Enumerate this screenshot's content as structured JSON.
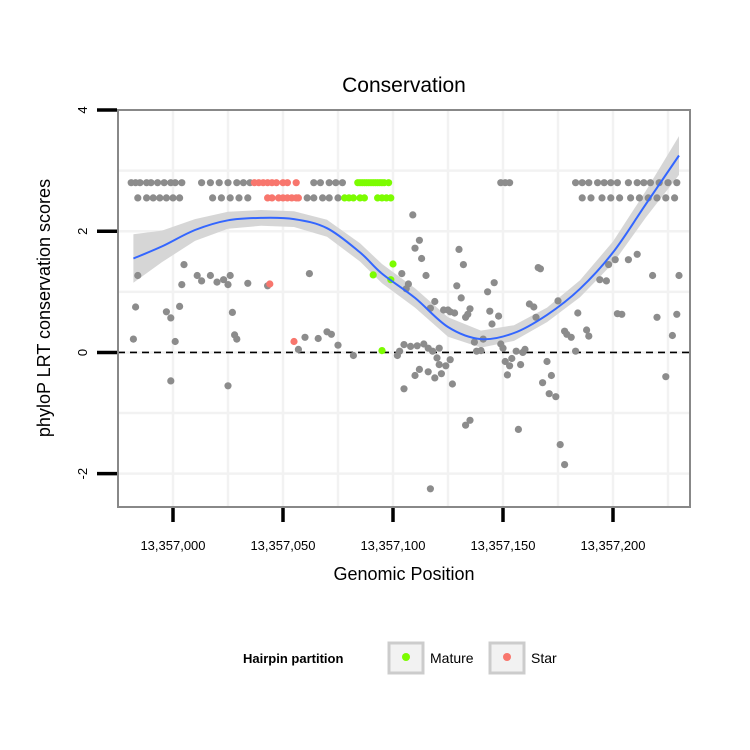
{
  "chart_data": {
    "type": "scatter",
    "title": "Conservation",
    "xlabel": "Genomic Position",
    "ylabel": "phyloP LRT conservation scores",
    "xlim": [
      13356975,
      13357235
    ],
    "ylim": [
      -2.55,
      4
    ],
    "x_ticks": [
      {
        "value": 13357000,
        "label": "13,357,000"
      },
      {
        "value": 13357050,
        "label": "13,357,050"
      },
      {
        "value": 13357100,
        "label": "13,357,100"
      },
      {
        "value": 13357150,
        "label": "13,357,150"
      },
      {
        "value": 13357200,
        "label": "13,357,200"
      }
    ],
    "y_ticks": [
      {
        "value": -2,
        "label": "-2"
      },
      {
        "value": 0,
        "label": "0"
      },
      {
        "value": 2,
        "label": "2"
      },
      {
        "value": 4,
        "label": "4"
      }
    ],
    "reference_line": {
      "y": 0,
      "style": "dashed"
    },
    "legend": {
      "title": "Hairpin partition",
      "position": "bottom",
      "entries": [
        {
          "label": "Mature",
          "color": "#7CFC00"
        },
        {
          "label": "Star",
          "color": "#F8766D"
        }
      ]
    },
    "colors": {
      "other": "#8C8C8C",
      "Mature": "#7CFC00",
      "Star": "#F8766D",
      "smooth": "#3366FF",
      "ribbon": "#D4D4D4",
      "grid": "#F2F2F2",
      "frame": "#888888"
    },
    "series": [
      {
        "name": "Mature",
        "points": [
          [
            13357084,
            2.8
          ],
          [
            13357085,
            2.8
          ],
          [
            13357086,
            2.8
          ],
          [
            13357087,
            2.8
          ],
          [
            13357088,
            2.8
          ],
          [
            13357089,
            2.8
          ],
          [
            13357090,
            2.8
          ],
          [
            13357091,
            2.8
          ],
          [
            13357092,
            2.8
          ],
          [
            13357093,
            2.8
          ],
          [
            13357094,
            2.8
          ],
          [
            13357095,
            2.8
          ],
          [
            13357096,
            2.8
          ],
          [
            13357098,
            2.8
          ],
          [
            13357078,
            2.55
          ],
          [
            13357080,
            2.55
          ],
          [
            13357082,
            2.55
          ],
          [
            13357085,
            2.55
          ],
          [
            13357087,
            2.55
          ],
          [
            13357093,
            2.55
          ],
          [
            13357095,
            2.55
          ],
          [
            13357097,
            2.55
          ],
          [
            13357099,
            2.55
          ],
          [
            13357091,
            1.28
          ],
          [
            13357099,
            1.2
          ],
          [
            13357100,
            1.46
          ],
          [
            13357095,
            0.03
          ]
        ]
      },
      {
        "name": "Star",
        "points": [
          [
            13357037,
            2.8
          ],
          [
            13357039,
            2.8
          ],
          [
            13357041,
            2.8
          ],
          [
            13357043,
            2.8
          ],
          [
            13357045,
            2.8
          ],
          [
            13357047,
            2.8
          ],
          [
            13357050,
            2.8
          ],
          [
            13357052,
            2.8
          ],
          [
            13357056,
            2.8
          ],
          [
            13357043,
            2.55
          ],
          [
            13357045,
            2.55
          ],
          [
            13357048,
            2.55
          ],
          [
            13357050,
            2.55
          ],
          [
            13357052,
            2.55
          ],
          [
            13357054,
            2.55
          ],
          [
            13357056,
            2.55
          ],
          [
            13357057,
            2.55
          ],
          [
            13357044,
            1.13
          ],
          [
            13357055,
            0.18
          ]
        ]
      },
      {
        "name": "other",
        "points": [
          [
            13356981,
            2.8
          ],
          [
            13356983,
            2.8
          ],
          [
            13356985,
            2.8
          ],
          [
            13356988,
            2.8
          ],
          [
            13356990,
            2.8
          ],
          [
            13356993,
            2.8
          ],
          [
            13356996,
            2.8
          ],
          [
            13356999,
            2.8
          ],
          [
            13357001,
            2.8
          ],
          [
            13357004,
            2.8
          ],
          [
            13357013,
            2.8
          ],
          [
            13357017,
            2.8
          ],
          [
            13357021,
            2.8
          ],
          [
            13357025,
            2.8
          ],
          [
            13357029,
            2.8
          ],
          [
            13357032,
            2.8
          ],
          [
            13357035,
            2.8
          ],
          [
            13357064,
            2.8
          ],
          [
            13357067,
            2.8
          ],
          [
            13357071,
            2.8
          ],
          [
            13357074,
            2.8
          ],
          [
            13357077,
            2.8
          ],
          [
            13357149,
            2.8
          ],
          [
            13357151,
            2.8
          ],
          [
            13357153,
            2.8
          ],
          [
            13357183,
            2.8
          ],
          [
            13357186,
            2.8
          ],
          [
            13357189,
            2.8
          ],
          [
            13357193,
            2.8
          ],
          [
            13357196,
            2.8
          ],
          [
            13357199,
            2.8
          ],
          [
            13357202,
            2.8
          ],
          [
            13357207,
            2.8
          ],
          [
            13357211,
            2.8
          ],
          [
            13357214,
            2.8
          ],
          [
            13357217,
            2.8
          ],
          [
            13357221,
            2.8
          ],
          [
            13357225,
            2.8
          ],
          [
            13357229,
            2.8
          ],
          [
            13356984,
            2.55
          ],
          [
            13356988,
            2.55
          ],
          [
            13356991,
            2.55
          ],
          [
            13356994,
            2.55
          ],
          [
            13356997,
            2.55
          ],
          [
            13357000,
            2.55
          ],
          [
            13357003,
            2.55
          ],
          [
            13357018,
            2.55
          ],
          [
            13357022,
            2.55
          ],
          [
            13357026,
            2.55
          ],
          [
            13357030,
            2.55
          ],
          [
            13357034,
            2.55
          ],
          [
            13357061,
            2.55
          ],
          [
            13357064,
            2.55
          ],
          [
            13357068,
            2.55
          ],
          [
            13357071,
            2.55
          ],
          [
            13357075,
            2.55
          ],
          [
            13357186,
            2.55
          ],
          [
            13357190,
            2.55
          ],
          [
            13357195,
            2.55
          ],
          [
            13357199,
            2.55
          ],
          [
            13357203,
            2.55
          ],
          [
            13357208,
            2.55
          ],
          [
            13357212,
            2.55
          ],
          [
            13357216,
            2.55
          ],
          [
            13357220,
            2.55
          ],
          [
            13357224,
            2.55
          ],
          [
            13357228,
            2.55
          ],
          [
            13356983,
            0.75
          ],
          [
            13356984,
            1.27
          ],
          [
            13356982,
            0.22
          ],
          [
            13356997,
            0.67
          ],
          [
            13356999,
            0.57
          ],
          [
            13357001,
            0.18
          ],
          [
            13357003,
            0.76
          ],
          [
            13357005,
            1.45
          ],
          [
            13357004,
            1.12
          ],
          [
            13357011,
            1.27
          ],
          [
            13357013,
            1.18
          ],
          [
            13357017,
            1.27
          ],
          [
            13357020,
            1.16
          ],
          [
            13357023,
            1.2
          ],
          [
            13357025,
            1.12
          ],
          [
            13357026,
            1.27
          ],
          [
            13357027,
            0.66
          ],
          [
            13357029,
            0.22
          ],
          [
            13357028,
            0.29
          ],
          [
            13357034,
            1.14
          ],
          [
            13357043,
            1.1
          ],
          [
            13357057,
            0.05
          ],
          [
            13357060,
            0.25
          ],
          [
            13357062,
            1.3
          ],
          [
            13357066,
            0.23
          ],
          [
            13357070,
            0.34
          ],
          [
            13357072,
            0.3
          ],
          [
            13357075,
            0.12
          ],
          [
            13357104,
            1.3
          ],
          [
            13357106,
            1.05
          ],
          [
            13357107,
            1.13
          ],
          [
            13357109,
            2.27
          ],
          [
            13357110,
            1.72
          ],
          [
            13357112,
            1.85
          ],
          [
            13357113,
            1.55
          ],
          [
            13357115,
            1.27
          ],
          [
            13357117,
            0.73
          ],
          [
            13357119,
            0.84
          ],
          [
            13357103,
            0.02
          ],
          [
            13357105,
            0.13
          ],
          [
            13357108,
            0.1
          ],
          [
            13357111,
            0.11
          ],
          [
            13357114,
            0.14
          ],
          [
            13357116,
            0.07
          ],
          [
            13357118,
            0.02
          ],
          [
            13357120,
            -0.09
          ],
          [
            13357121,
            -0.2
          ],
          [
            13357102,
            -0.05
          ],
          [
            13357105,
            -0.6
          ],
          [
            13357110,
            -0.38
          ],
          [
            13357112,
            -0.28
          ],
          [
            13357116,
            -0.32
          ],
          [
            13357119,
            -0.42
          ],
          [
            13357121,
            0.07
          ],
          [
            13357122,
            -0.35
          ],
          [
            13357124,
            -0.22
          ],
          [
            13357126,
            -0.12
          ],
          [
            13357127,
            -0.52
          ],
          [
            13357123,
            0.7
          ],
          [
            13357125,
            0.7
          ],
          [
            13357126,
            0.67
          ],
          [
            13357128,
            0.65
          ],
          [
            13357129,
            1.1
          ],
          [
            13357130,
            1.7
          ],
          [
            13357131,
            0.9
          ],
          [
            13357132,
            1.45
          ],
          [
            13357133,
            0.58
          ],
          [
            13357134,
            0.63
          ],
          [
            13357135,
            0.72
          ],
          [
            13357137,
            0.17
          ],
          [
            13357138,
            0.02
          ],
          [
            13357140,
            0.03
          ],
          [
            13357141,
            0.22
          ],
          [
            13357143,
            1.0
          ],
          [
            13357144,
            0.68
          ],
          [
            13357145,
            0.47
          ],
          [
            13357146,
            1.15
          ],
          [
            13357148,
            0.6
          ],
          [
            13357149,
            0.14
          ],
          [
            13357150,
            0.07
          ],
          [
            13357151,
            -0.15
          ],
          [
            13357152,
            -0.37
          ],
          [
            13357153,
            -0.22
          ],
          [
            13357154,
            -0.1
          ],
          [
            13357156,
            0.02
          ],
          [
            13357157,
            -1.27
          ],
          [
            13357158,
            -0.2
          ],
          [
            13357159,
            0.0
          ],
          [
            13357160,
            0.05
          ],
          [
            13357162,
            0.8
          ],
          [
            13357164,
            0.75
          ],
          [
            13357165,
            0.58
          ],
          [
            13357166,
            1.4
          ],
          [
            13357167,
            1.38
          ],
          [
            13357168,
            -0.5
          ],
          [
            13357170,
            -0.15
          ],
          [
            13357171,
            -0.68
          ],
          [
            13357172,
            -0.38
          ],
          [
            13357174,
            -0.73
          ],
          [
            13357175,
            0.85
          ],
          [
            13357176,
            -1.52
          ],
          [
            13357178,
            0.35
          ],
          [
            13357178,
            -1.85
          ],
          [
            13357179,
            0.3
          ],
          [
            13357181,
            0.25
          ],
          [
            13357183,
            0.02
          ],
          [
            13357184,
            0.65
          ],
          [
            13357188,
            0.37
          ],
          [
            13357189,
            0.27
          ],
          [
            13357194,
            1.2
          ],
          [
            13357197,
            1.18
          ],
          [
            13357198,
            1.45
          ],
          [
            13357201,
            1.53
          ],
          [
            13357202,
            0.64
          ],
          [
            13357204,
            0.63
          ],
          [
            13357207,
            1.53
          ],
          [
            13357211,
            1.62
          ],
          [
            13357218,
            1.27
          ],
          [
            13357220,
            0.58
          ],
          [
            13357224,
            -0.4
          ],
          [
            13357227,
            0.28
          ],
          [
            13357229,
            0.63
          ],
          [
            13357230,
            1.27
          ],
          [
            13356999,
            -0.47
          ],
          [
            13357025,
            -0.55
          ],
          [
            13357082,
            -0.05
          ],
          [
            13357117,
            -2.25
          ],
          [
            13357133,
            -1.2
          ],
          [
            13357135,
            -1.12
          ]
        ]
      }
    ],
    "smooth_fit": {
      "x": [
        13356982,
        13356995,
        13357010,
        13357025,
        13357040,
        13357055,
        13357070,
        13357085,
        13357095,
        13357110,
        13357125,
        13357140,
        13357155,
        13357170,
        13357185,
        13357200,
        13357215,
        13357230
      ],
      "y": [
        1.55,
        1.75,
        2.02,
        2.18,
        2.22,
        2.2,
        2.05,
        1.65,
        1.3,
        0.9,
        0.42,
        0.22,
        0.32,
        0.62,
        1.05,
        1.65,
        2.45,
        3.25
      ],
      "ci_halfwidth": [
        0.4,
        0.26,
        0.18,
        0.14,
        0.13,
        0.13,
        0.14,
        0.15,
        0.16,
        0.16,
        0.16,
        0.14,
        0.13,
        0.12,
        0.14,
        0.18,
        0.22,
        0.32
      ]
    }
  }
}
